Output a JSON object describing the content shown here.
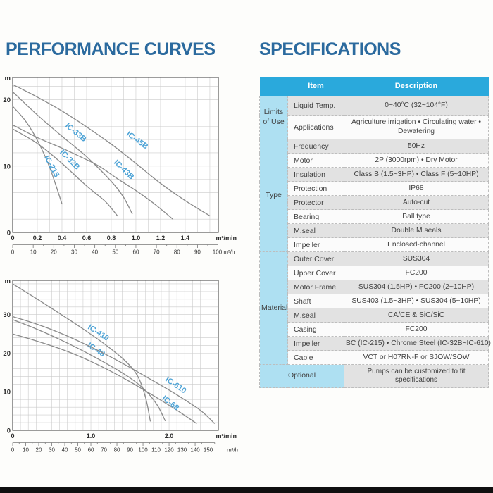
{
  "titles": {
    "left": "PERFORMANCE CURVES",
    "right": "SPECIFICATIONS"
  },
  "colors": {
    "title": "#2b6a9e",
    "table_header_bg": "#2aa9dc",
    "table_header_text": "#ffffff",
    "category_bg": "#aee0f2",
    "row_gray": "#e2e2e2",
    "row_white": "#fbfbfb",
    "curve": "#8a8a8a",
    "curve_label": "#4da3d6",
    "grid": "#cbcbcb",
    "axis_border": "#5a5a5a",
    "tick_text": "#2a2a2a"
  },
  "chart_data": [
    {
      "type": "line",
      "title": "",
      "ylabel": "m",
      "xlabel": "m³/min",
      "x2label": "m³/h",
      "xlim": [
        0,
        1.669
      ],
      "ylim": [
        0,
        23.35
      ],
      "x2lim": [
        0,
        100
      ],
      "grid_step_x": 0.1,
      "grid_step_y": 2,
      "yticks": [
        "0",
        "10",
        "20"
      ],
      "ytick_values": [
        0,
        10,
        20
      ],
      "xticks": [
        "0",
        "0.2",
        "0.4",
        "0.6",
        "0.8",
        "1.0",
        "1.2",
        "1.4"
      ],
      "xtick_values": [
        0,
        0.2,
        0.4,
        0.6,
        0.8,
        1.0,
        1.2,
        1.4
      ],
      "x2tick_labels": [
        "0",
        "10",
        "20",
        "30",
        "40",
        "50",
        "60",
        "70",
        "80",
        "90"
      ],
      "x2tick_values": [
        0,
        10,
        20,
        30,
        40,
        50,
        60,
        70,
        80,
        90
      ],
      "x2_end_label": "100 m³/h",
      "series": [
        {
          "name": "IC-215",
          "points": [
            [
              0,
              19
            ],
            [
              0.1,
              16.9
            ],
            [
              0.2,
              13.9
            ],
            [
              0.3,
              9.8
            ],
            [
              0.4,
              4.3
            ]
          ],
          "label_at": [
            0.3,
            9.8
          ],
          "label_rot": 62
        },
        {
          "name": "IC-32B",
          "points": [
            [
              0,
              15.6
            ],
            [
              0.2,
              13.4
            ],
            [
              0.4,
              10.4
            ],
            [
              0.6,
              7.0
            ],
            [
              0.75,
              4.7
            ],
            [
              0.85,
              2.5
            ]
          ],
          "label_at": [
            0.45,
            10.7
          ],
          "label_rot": 45
        },
        {
          "name": "IC-33B",
          "points": [
            [
              0,
              21.2
            ],
            [
              0.2,
              17.7
            ],
            [
              0.4,
              14.5
            ],
            [
              0.6,
              11.4
            ],
            [
              0.8,
              7.7
            ],
            [
              0.9,
              5.3
            ],
            [
              0.97,
              2.8
            ]
          ],
          "label_at": [
            0.5,
            14.8
          ],
          "label_rot": 40
        },
        {
          "name": "IC-43B",
          "points": [
            [
              0,
              16.2
            ],
            [
              0.2,
              14.3
            ],
            [
              0.4,
              12.7
            ],
            [
              0.55,
              11.4
            ],
            [
              0.7,
              10.0
            ],
            [
              0.85,
              8.1
            ],
            [
              1.0,
              6.3
            ],
            [
              1.15,
              4.3
            ],
            [
              1.3,
              2.0
            ]
          ],
          "label_at": [
            0.89,
            9.2
          ],
          "label_rot": 44
        },
        {
          "name": "IC-45B",
          "points": [
            [
              0,
              22.3
            ],
            [
              0.2,
              20.4
            ],
            [
              0.4,
              18.3
            ],
            [
              0.6,
              15.9
            ],
            [
              0.8,
              13.3
            ],
            [
              1.0,
              10.4
            ],
            [
              1.2,
              7.4
            ],
            [
              1.4,
              4.8
            ],
            [
              1.6,
              2.5
            ]
          ],
          "label_at": [
            1.0,
            13.6
          ],
          "label_rot": 36
        }
      ]
    },
    {
      "type": "line",
      "title": "",
      "ylabel": "m",
      "xlabel": "m³/min",
      "x2label": "m³/h",
      "xlim": [
        0,
        2.63
      ],
      "ylim": [
        0,
        38.9
      ],
      "x2lim": [
        0,
        155
      ],
      "grid_step_x": 0.1,
      "grid_step_y": 2,
      "yticks": [
        "0",
        "10",
        "20",
        "30"
      ],
      "ytick_values": [
        0,
        10,
        20,
        30
      ],
      "xticks": [
        "0",
        "1.0",
        "2.0"
      ],
      "xtick_values": [
        0,
        1.0,
        2.0
      ],
      "x2tick_labels": [
        "0",
        "10",
        "20",
        "30",
        "40",
        "50",
        "60",
        "70",
        "80",
        "90",
        "100",
        "110",
        "120",
        "130",
        "140",
        "150"
      ],
      "x2tick_values": [
        0,
        10,
        20,
        30,
        40,
        50,
        60,
        70,
        80,
        90,
        100,
        110,
        120,
        130,
        140,
        150
      ],
      "x2_end_label": "m³/h",
      "series": [
        {
          "name": "IC-410",
          "points": [
            [
              0,
              38
            ],
            [
              0.3,
              34.2
            ],
            [
              0.6,
              30.3
            ],
            [
              0.9,
              26.3
            ],
            [
              1.2,
              22.0
            ],
            [
              1.45,
              17.8
            ],
            [
              1.6,
              14.0
            ],
            [
              1.7,
              8.5
            ],
            [
              1.76,
              2.4
            ]
          ],
          "label_at": [
            1.08,
            24.8
          ],
          "label_rot": 33
        },
        {
          "name": "IC-48",
          "points": [
            [
              0,
              28.7
            ],
            [
              0.3,
              26.3
            ],
            [
              0.6,
              23.6
            ],
            [
              0.9,
              20.6
            ],
            [
              1.2,
              17.3
            ],
            [
              1.5,
              13.6
            ],
            [
              1.7,
              10.3
            ],
            [
              1.85,
              6.5
            ],
            [
              1.95,
              2.5
            ]
          ],
          "label_at": [
            1.05,
            20.4
          ],
          "label_rot": 33
        },
        {
          "name": "IC-610",
          "points": [
            [
              0,
              29.5
            ],
            [
              0.3,
              27.6
            ],
            [
              0.6,
              25.3
            ],
            [
              0.9,
              22.6
            ],
            [
              1.2,
              19.6
            ],
            [
              1.5,
              16.3
            ],
            [
              1.8,
              12.8
            ],
            [
              2.1,
              9.2
            ],
            [
              2.4,
              5.2
            ],
            [
              2.58,
              1.8
            ]
          ],
          "label_at": [
            2.07,
            11.2
          ],
          "label_rot": 34
        },
        {
          "name": "IC-68",
          "points": [
            [
              0,
              25.0
            ],
            [
              0.3,
              23.2
            ],
            [
              0.6,
              21.2
            ],
            [
              0.9,
              18.8
            ],
            [
              1.2,
              15.9
            ],
            [
              1.5,
              12.6
            ],
            [
              1.8,
              9.0
            ],
            [
              2.1,
              5.2
            ],
            [
              2.35,
              1.8
            ]
          ],
          "label_at": [
            2.0,
            6.6
          ],
          "label_rot": 38
        }
      ]
    }
  ],
  "spec_table": {
    "headers": {
      "item": "Item",
      "description": "Description"
    },
    "sections": [
      {
        "category": "Limits of Use",
        "rows": [
          {
            "item": "Liquid Temp.",
            "description": "0~40°C (32~104°F)"
          },
          {
            "item": "Applications",
            "description": "Agriculture irrigation • Circulating water • Dewatering"
          }
        ]
      },
      {
        "category": "Type",
        "rows": [
          {
            "item": "Frequency",
            "description": "50Hz"
          },
          {
            "item": "Motor",
            "description": "2P (3000rpm) • Dry Motor"
          },
          {
            "item": "Insulation",
            "description": "Class B (1.5~3HP) • Class F (5~10HP)"
          },
          {
            "item": "Protection",
            "description": "IP68"
          },
          {
            "item": "Protector",
            "description": "Auto-cut"
          },
          {
            "item": "Bearing",
            "description": "Ball type"
          },
          {
            "item": "M.seal",
            "description": "Double M.seals"
          },
          {
            "item": "Impeller",
            "description": "Enclosed-channel"
          }
        ]
      },
      {
        "category": "Material",
        "rows": [
          {
            "item": "Outer Cover",
            "description": "SUS304"
          },
          {
            "item": "Upper Cover",
            "description": "FC200"
          },
          {
            "item": "Motor Frame",
            "description": "SUS304 (1.5HP) • FC200 (2~10HP)"
          },
          {
            "item": "Shaft",
            "description": "SUS403 (1.5~3HP) • SUS304 (5~10HP)"
          },
          {
            "item": "M.seal",
            "description": "CA/CE & SiC/SiC"
          },
          {
            "item": "Casing",
            "description": "FC200"
          },
          {
            "item": "Impeller",
            "description": "BC (IC-215) • Chrome Steel (IC-32B~IC-610)"
          },
          {
            "item": "Cable",
            "description": "VCT or H07RN-F or SJOW/SOW"
          }
        ]
      },
      {
        "category": "Optional",
        "optional_row": true,
        "description": "Pumps can be customized to fit specifications"
      }
    ]
  }
}
